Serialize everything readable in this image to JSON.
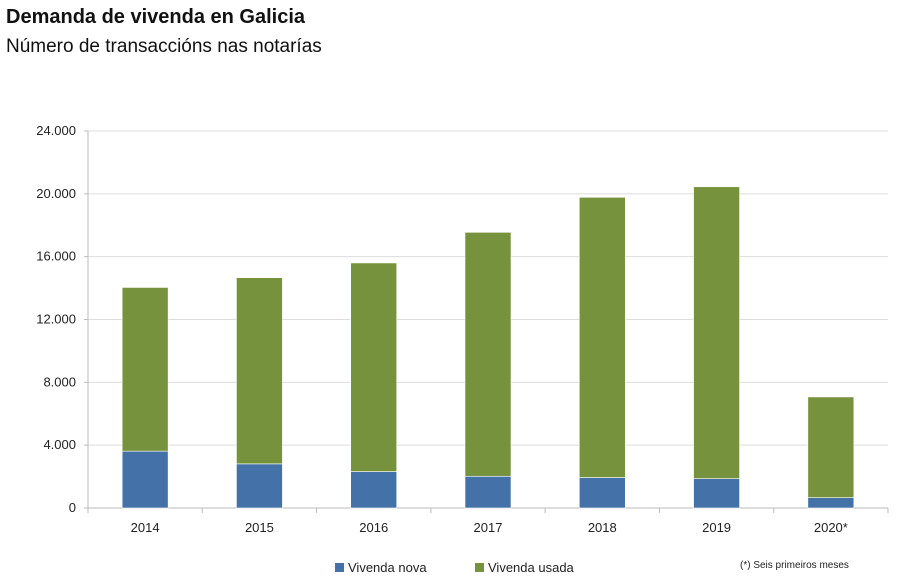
{
  "title": "Demanda de vivenda en Galicia",
  "subtitle": "Número de transaccións nas notarías",
  "note": "(*) Seis primeiros meses",
  "chart_data": {
    "type": "bar",
    "stacked": true,
    "title": "Demanda de vivenda en Galicia",
    "subtitle": "Número de transaccións nas notarías",
    "categories": [
      "2014",
      "2015",
      "2016",
      "2017",
      "2018",
      "2019",
      "2020*"
    ],
    "series": [
      {
        "name": "Vivenda nova",
        "color": "#4472a8",
        "values": [
          3620,
          2810,
          2320,
          2020,
          1940,
          1870,
          660
        ]
      },
      {
        "name": "Vivenda usada",
        "color": "#76923c",
        "values": [
          10420,
          11850,
          13280,
          15530,
          17840,
          18580,
          6410
        ]
      }
    ],
    "ylim": [
      0,
      24000
    ],
    "yticks": [
      "0",
      "4.000",
      "8.000",
      "12.000",
      "16.000",
      "20.000",
      "24.000"
    ],
    "grid": true,
    "legend": "bottom"
  }
}
